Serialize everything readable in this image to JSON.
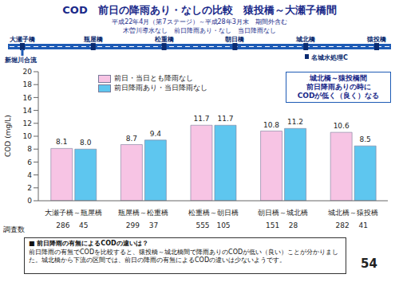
{
  "header": {
    "title": "COD　前日の降雨あり・なしの比較　猿投橋～大瀬子橋間",
    "subtitle": [
      "平成22年4月（第7ステージ）～平成28年3月末　期間外含む",
      "木曽川導水なし　前日降雨あり・なし　当日降雨なし"
    ]
  },
  "route": {
    "stations": [
      "大瀬子橋",
      "瓶屋橋",
      "松重橋",
      "朝日橋",
      "城北橋",
      "猿投橋"
    ],
    "left_note": "新堀川合流",
    "plant": "名城水処理C"
  },
  "chart_data": {
    "type": "bar",
    "categories": [
      "大瀬子橋～瓶屋橋",
      "瓶屋橋～松重橋",
      "松重橋～朝日橋",
      "朝日橋～城北橋",
      "城北橋～猿投橋"
    ],
    "series": [
      {
        "name": "前日・当日とも降雨なし",
        "color": "#f7c4e4",
        "values": [
          8.1,
          8.7,
          11.7,
          10.8,
          10.6
        ],
        "value_labels": [
          "8.1",
          "8.7",
          "11.7",
          "10.8",
          "10.6"
        ]
      },
      {
        "name": "前日降雨あり・当日降雨なし",
        "color": "#5ec6ef",
        "values": [
          8.0,
          9.4,
          11.7,
          11.2,
          8.5
        ],
        "value_labels": [
          "8.0",
          "9.4",
          "11.7",
          "11.2",
          "8.5"
        ]
      }
    ],
    "y_label": "COD (mg/L)",
    "ylim": [
      0,
      20
    ],
    "yticks": [
      0,
      2,
      4,
      6,
      8,
      10,
      12,
      14,
      16,
      18,
      20
    ],
    "grid": false,
    "legend": "top",
    "data_labels": true,
    "survey_counts": {
      "label": "調査数",
      "values": [
        [
          286,
          45
        ],
        [
          299,
          37
        ],
        [
          555,
          105
        ],
        [
          151,
          28
        ],
        [
          282,
          41
        ]
      ]
    },
    "annotation": [
      "城北橋～猿投橋間",
      "前日降雨ありの時に",
      "CODが低く（良く）なる"
    ]
  },
  "note": {
    "heading": "■ 前日降雨の有無によるCODの違いは？",
    "text": "前日降雨の有無でCODを比較すると、猿投橋～城北橋間で降雨ありのCODが低い（良い）ことが分かりました。城北橋から下流の区間では、前日の降雨の有無によるCODの違いは少ないようです。"
  },
  "page": "54"
}
